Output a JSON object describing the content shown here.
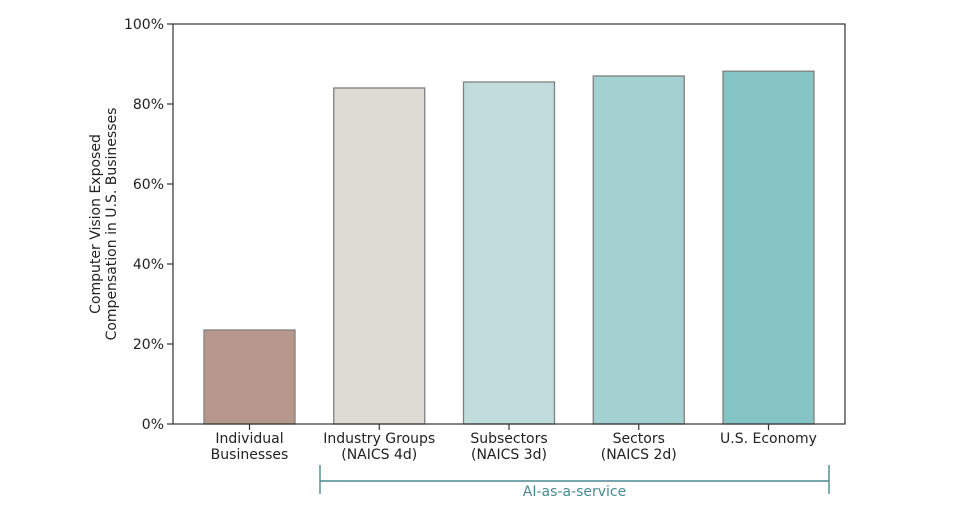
{
  "chart_data": {
    "type": "bar",
    "categories": [
      [
        "Individual",
        "Businesses"
      ],
      [
        "Industry Groups",
        "(NAICS 4d)"
      ],
      [
        "Subsectors",
        "(NAICS 3d)"
      ],
      [
        "Sectors",
        "(NAICS 2d)"
      ],
      [
        "U.S. Economy"
      ]
    ],
    "values": [
      23.5,
      84,
      85.5,
      87,
      88.2
    ],
    "colors": [
      "#b5978b",
      "#dedbd4",
      "#c0dcdc",
      "#a3d0d1",
      "#85c4c5"
    ],
    "bar_edge_color": "#808080",
    "ylabel_lines": [
      "Computer Vision Exposed",
      "Compensation in U.S. Businesses"
    ],
    "ylim": [
      0,
      100
    ],
    "yticks": [
      0,
      20,
      40,
      60,
      80,
      100
    ],
    "ytick_labels": [
      "0%",
      "20%",
      "40%",
      "60%",
      "80%",
      "100%"
    ],
    "grid": false,
    "annotation": {
      "text": "AI-as-a-service",
      "spans_categories": [
        1,
        4
      ],
      "color": "#4a8a90"
    }
  }
}
